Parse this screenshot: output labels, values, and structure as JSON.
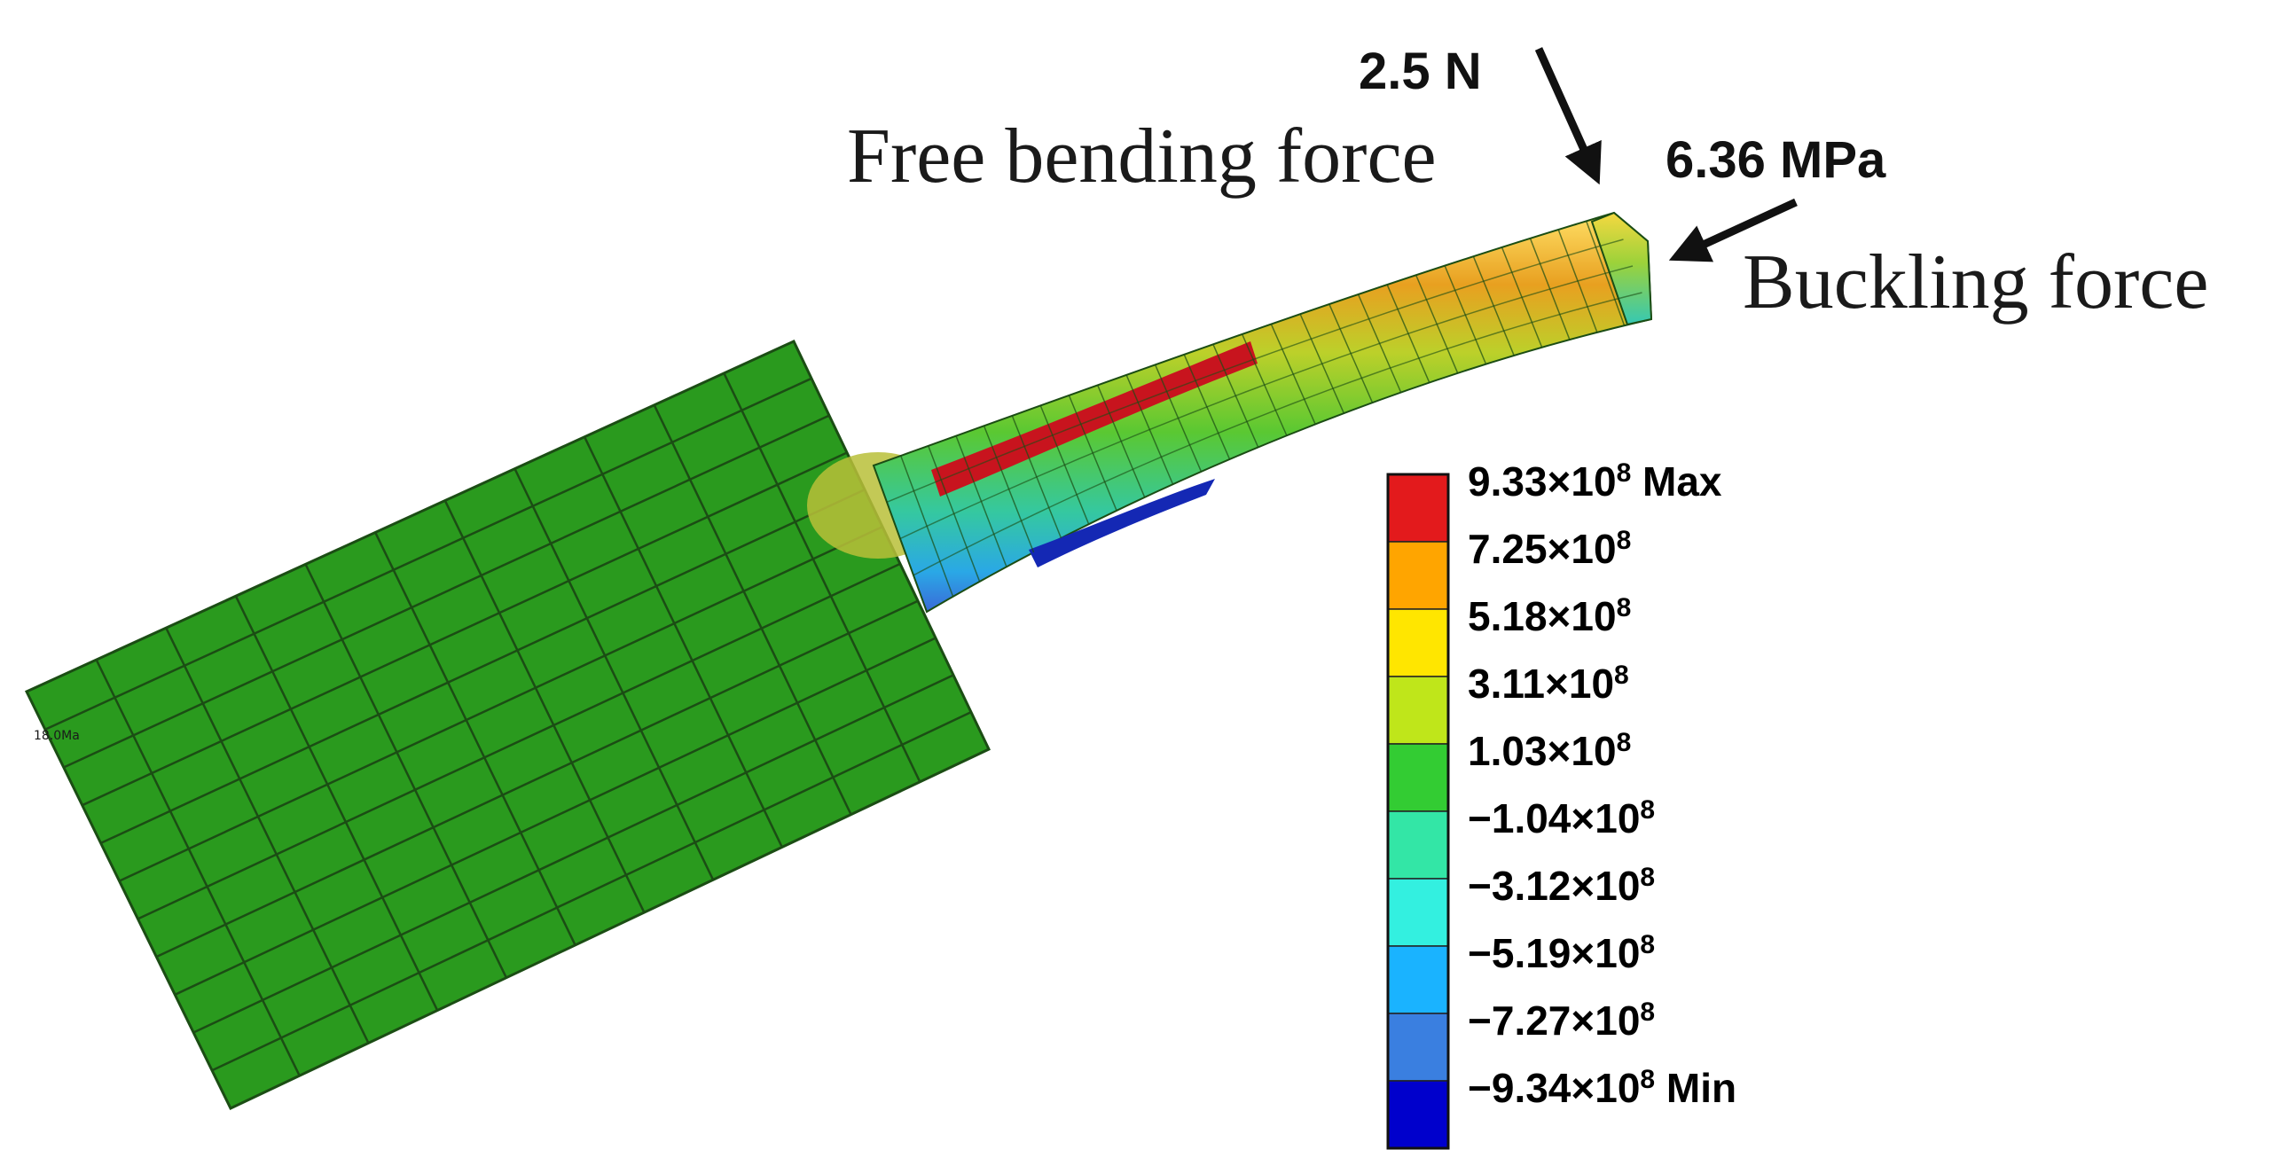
{
  "annotations": {
    "bending_force_value": "2.5 N",
    "bending_force_label": "Free bending force",
    "buckling_force_value": "6.36 MPa",
    "buckling_force_label": "Buckling force"
  },
  "legend": {
    "entries": [
      {
        "text": "9.33×10",
        "sup": "8",
        "suffix": " Max",
        "color": "#e31a1c"
      },
      {
        "text": "7.25×10",
        "sup": "8",
        "suffix": "",
        "color": "#ffa500"
      },
      {
        "text": "5.18×10",
        "sup": "8",
        "suffix": "",
        "color": "#ffe600"
      },
      {
        "text": "3.11×10",
        "sup": "8",
        "suffix": "",
        "color": "#bfe61a"
      },
      {
        "text": "1.03×10",
        "sup": "8",
        "suffix": "",
        "color": "#33cc33"
      },
      {
        "text": "−1.04×10",
        "sup": "8",
        "suffix": "",
        "color": "#33e6a6"
      },
      {
        "text": "−3.12×10",
        "sup": "8",
        "suffix": "",
        "color": "#33f0e0"
      },
      {
        "text": "−5.19×10",
        "sup": "8",
        "suffix": "",
        "color": "#1ab3ff"
      },
      {
        "text": "−7.27×10",
        "sup": "8",
        "suffix": "",
        "color": "#3a7fe0"
      },
      {
        "text": "−9.34×10",
        "sup": "8",
        "suffix": " Min",
        "color": "#0000cc"
      }
    ]
  },
  "colors": {
    "base_green": "#2a9a1e",
    "mesh_line": "#1b4d14",
    "max_red": "#c8141e",
    "min_blue": "#1428b4"
  }
}
